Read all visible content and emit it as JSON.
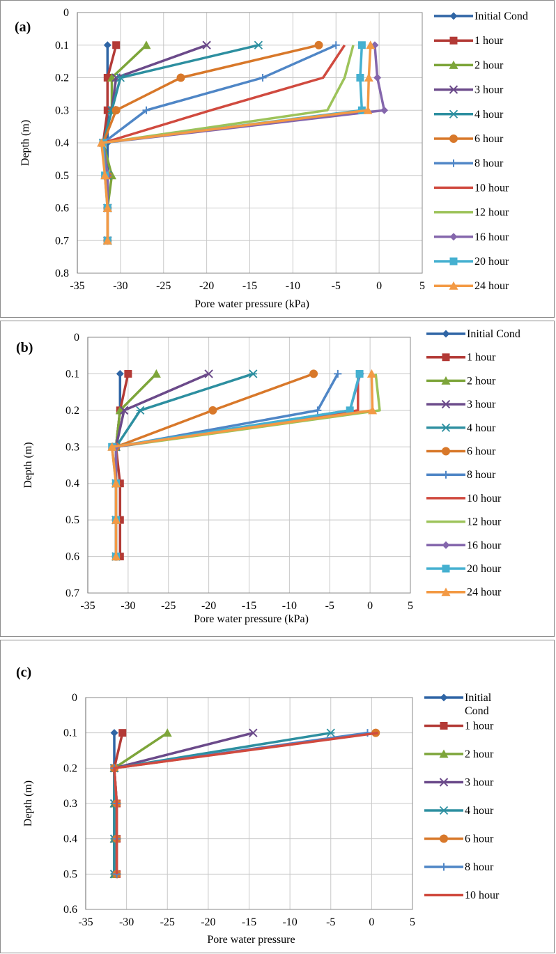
{
  "series_styles": [
    {
      "color": "#2f65a5",
      "marker": "diamond"
    },
    {
      "color": "#b33a36",
      "marker": "square"
    },
    {
      "color": "#7da53a",
      "marker": "triangle"
    },
    {
      "color": "#6b4a8a",
      "marker": "x"
    },
    {
      "color": "#2d8fa0",
      "marker": "star"
    },
    {
      "color": "#d8782a",
      "marker": "circle"
    },
    {
      "color": "#4f86c6",
      "marker": "plus"
    },
    {
      "color": "#d04a3f",
      "marker": "none"
    },
    {
      "color": "#9dc35a",
      "marker": "none"
    },
    {
      "color": "#8466ac",
      "marker": "diamond"
    },
    {
      "color": "#45b0d0",
      "marker": "square"
    },
    {
      "color": "#f39a45",
      "marker": "triangle"
    }
  ],
  "chart_data": [
    {
      "type": "line",
      "panel_label": "(a)",
      "xlabel": "Pore water pressure (kPa)",
      "ylabel": "Depth (m)",
      "xlim": [
        -35,
        5
      ],
      "xticks": [
        -35,
        -30,
        -25,
        -20,
        -15,
        -10,
        -5,
        0,
        5
      ],
      "ylim": [
        0,
        0.8
      ],
      "yticks": [
        "0",
        "0.1",
        "0.2",
        "0.3",
        "0.4",
        "0.5",
        "0.6",
        "0.7",
        "0.8"
      ],
      "y_inverted": true,
      "grid": "both",
      "legend_position": "right",
      "series": [
        {
          "name": "Initial Cond",
          "points": [
            [
              -31.5,
              0.1
            ],
            [
              -31.5,
              0.2
            ],
            [
              -31.5,
              0.3
            ],
            [
              -31.5,
              0.4
            ],
            [
              -31.5,
              0.5
            ],
            [
              -31.5,
              0.6
            ],
            [
              -31.5,
              0.7
            ]
          ]
        },
        {
          "name": "1 hour",
          "points": [
            [
              -30.5,
              0.1
            ],
            [
              -31.5,
              0.2
            ],
            [
              -31.5,
              0.3
            ],
            [
              -32,
              0.4
            ],
            [
              -31.5,
              0.5
            ],
            [
              -31.5,
              0.6
            ],
            [
              -31.5,
              0.7
            ]
          ]
        },
        {
          "name": "2 hour",
          "points": [
            [
              -27,
              0.1
            ],
            [
              -31,
              0.2
            ],
            [
              -31,
              0.3
            ],
            [
              -32,
              0.4
            ],
            [
              -31,
              0.5
            ],
            [
              -31.5,
              0.6
            ],
            [
              -31.5,
              0.7
            ]
          ]
        },
        {
          "name": "3 hour",
          "points": [
            [
              -20,
              0.1
            ],
            [
              -30.5,
              0.2
            ],
            [
              -31,
              0.3
            ],
            [
              -32,
              0.4
            ],
            [
              -31.5,
              0.5
            ],
            [
              -31.5,
              0.6
            ],
            [
              -31.5,
              0.7
            ]
          ]
        },
        {
          "name": "4 hour",
          "points": [
            [
              -14,
              0.1
            ],
            [
              -30,
              0.2
            ],
            [
              -31,
              0.3
            ],
            [
              -32,
              0.4
            ],
            [
              -31.5,
              0.5
            ],
            [
              -31.5,
              0.6
            ],
            [
              -31.5,
              0.7
            ]
          ]
        },
        {
          "name": "6 hour",
          "points": [
            [
              -7,
              0.1
            ],
            [
              -23,
              0.2
            ],
            [
              -30.5,
              0.3
            ],
            [
              -32,
              0.4
            ],
            [
              -31.5,
              0.5
            ],
            [
              -31.5,
              0.6
            ],
            [
              -31.5,
              0.7
            ]
          ]
        },
        {
          "name": "8 hour",
          "points": [
            [
              -5,
              0.1
            ],
            [
              -13.5,
              0.2
            ],
            [
              -27,
              0.3
            ],
            [
              -32,
              0.4
            ],
            [
              -31.5,
              0.5
            ],
            [
              -31.5,
              0.6
            ],
            [
              -31.5,
              0.7
            ]
          ]
        },
        {
          "name": "10 hour",
          "points": [
            [
              -4,
              0.1
            ],
            [
              -6.5,
              0.2
            ],
            [
              -19.5,
              0.3
            ],
            [
              -32,
              0.4
            ],
            [
              -31.5,
              0.5
            ],
            [
              -31.5,
              0.6
            ],
            [
              -31.5,
              0.7
            ]
          ]
        },
        {
          "name": "12 hour",
          "points": [
            [
              -3,
              0.1
            ],
            [
              -4,
              0.2
            ],
            [
              -6,
              0.3
            ],
            [
              -32,
              0.4
            ],
            [
              -31.5,
              0.5
            ],
            [
              -31.5,
              0.6
            ],
            [
              -31.5,
              0.7
            ]
          ]
        },
        {
          "name": "16 hour",
          "points": [
            [
              -0.5,
              0.1
            ],
            [
              -0.2,
              0.2
            ],
            [
              0.6,
              0.3
            ],
            [
              -32,
              0.4
            ],
            [
              -31.5,
              0.5
            ],
            [
              -31.5,
              0.6
            ],
            [
              -31.5,
              0.7
            ]
          ]
        },
        {
          "name": "20 hour",
          "points": [
            [
              -2,
              0.1
            ],
            [
              -2.2,
              0.2
            ],
            [
              -2,
              0.3
            ],
            [
              -32,
              0.4
            ],
            [
              -31.8,
              0.5
            ],
            [
              -31.5,
              0.6
            ],
            [
              -31.5,
              0.7
            ]
          ]
        },
        {
          "name": "24 hour",
          "points": [
            [
              -1,
              0.1
            ],
            [
              -1.2,
              0.2
            ],
            [
              -1.3,
              0.3
            ],
            [
              -32.2,
              0.4
            ],
            [
              -31.8,
              0.5
            ],
            [
              -31.5,
              0.6
            ],
            [
              -31.5,
              0.7
            ]
          ]
        }
      ]
    },
    {
      "type": "line",
      "panel_label": "(b)",
      "xlabel": "Pore water pressure (kPa)",
      "ylabel": "Depth (m)",
      "xlim": [
        -35,
        5
      ],
      "xticks": [
        -35,
        -30,
        -25,
        -20,
        -15,
        -10,
        -5,
        0,
        5
      ],
      "ylim": [
        0,
        0.7
      ],
      "yticks": [
        "0",
        "0.1",
        "0.2",
        "0.3",
        "0.4",
        "0.5",
        "0.6",
        "0.7"
      ],
      "y_inverted": true,
      "grid": "both",
      "legend_position": "right",
      "series": [
        {
          "name": "Initial Cond",
          "points": [
            [
              -31,
              0.1
            ],
            [
              -31,
              0.2
            ],
            [
              -31.5,
              0.3
            ],
            [
              -31.5,
              0.4
            ],
            [
              -31.5,
              0.5
            ],
            [
              -31.5,
              0.6
            ]
          ]
        },
        {
          "name": "1 hour",
          "points": [
            [
              -30,
              0.1
            ],
            [
              -31,
              0.2
            ],
            [
              -31.5,
              0.3
            ],
            [
              -31,
              0.4
            ],
            [
              -31,
              0.5
            ],
            [
              -31,
              0.6
            ]
          ]
        },
        {
          "name": "2 hour",
          "points": [
            [
              -26.5,
              0.1
            ],
            [
              -31,
              0.2
            ],
            [
              -31.5,
              0.3
            ],
            [
              -31.5,
              0.4
            ],
            [
              -31.5,
              0.5
            ],
            [
              -31.5,
              0.6
            ]
          ]
        },
        {
          "name": "3 hour",
          "points": [
            [
              -20,
              0.1
            ],
            [
              -30.5,
              0.2
            ],
            [
              -31.5,
              0.3
            ],
            [
              -31.5,
              0.4
            ],
            [
              -31.5,
              0.5
            ],
            [
              -31.5,
              0.6
            ]
          ]
        },
        {
          "name": "4 hour",
          "points": [
            [
              -14.5,
              0.1
            ],
            [
              -28.5,
              0.2
            ],
            [
              -31.5,
              0.3
            ],
            [
              -31.5,
              0.4
            ],
            [
              -31.5,
              0.5
            ],
            [
              -31.5,
              0.6
            ]
          ]
        },
        {
          "name": "6 hour",
          "points": [
            [
              -7,
              0.1
            ],
            [
              -19.5,
              0.2
            ],
            [
              -31.5,
              0.3
            ],
            [
              -31.5,
              0.4
            ],
            [
              -31.5,
              0.5
            ],
            [
              -31.5,
              0.6
            ]
          ]
        },
        {
          "name": "8 hour",
          "points": [
            [
              -4,
              0.1
            ],
            [
              -6.5,
              0.2
            ],
            [
              -31.5,
              0.3
            ],
            [
              -31.5,
              0.4
            ],
            [
              -31.5,
              0.5
            ],
            [
              -31.5,
              0.6
            ]
          ]
        },
        {
          "name": "10 hour",
          "points": [
            [
              -1.5,
              0.1
            ],
            [
              -1.5,
              0.2
            ],
            [
              -31.5,
              0.3
            ],
            [
              -31.5,
              0.4
            ],
            [
              -31.5,
              0.5
            ],
            [
              -31.5,
              0.6
            ]
          ]
        },
        {
          "name": "12 hour",
          "points": [
            [
              0.7,
              0.1
            ],
            [
              1.2,
              0.2
            ],
            [
              -31.5,
              0.3
            ],
            [
              -31.5,
              0.4
            ],
            [
              -31.5,
              0.5
            ],
            [
              -31.5,
              0.6
            ]
          ]
        },
        {
          "name": "16 hour",
          "points": [
            [
              -1.2,
              0.1
            ],
            [
              -2.5,
              0.2
            ],
            [
              -31.5,
              0.3
            ],
            [
              -31.5,
              0.4
            ],
            [
              -31.5,
              0.5
            ],
            [
              -31.5,
              0.6
            ]
          ]
        },
        {
          "name": "20 hour",
          "points": [
            [
              -1.3,
              0.1
            ],
            [
              -2.5,
              0.2
            ],
            [
              -32,
              0.3
            ],
            [
              -31.5,
              0.4
            ],
            [
              -31.5,
              0.5
            ],
            [
              -31.5,
              0.6
            ]
          ]
        },
        {
          "name": "24 hour",
          "points": [
            [
              0.2,
              0.1
            ],
            [
              0.3,
              0.2
            ],
            [
              -32,
              0.3
            ],
            [
              -31.5,
              0.4
            ],
            [
              -31.5,
              0.5
            ],
            [
              -31.5,
              0.6
            ]
          ]
        }
      ]
    },
    {
      "type": "line",
      "panel_label": "(c)",
      "xlabel": "Pore water pressure",
      "ylabel": "Depth (m)",
      "xlim": [
        -35,
        5
      ],
      "xticks": [
        -35,
        -30,
        -25,
        -20,
        -15,
        -10,
        -5,
        0,
        5
      ],
      "ylim": [
        0,
        0.6
      ],
      "yticks": [
        "0",
        "0.1",
        "0.2",
        "0.3",
        "0.4",
        "0.5",
        "0.6"
      ],
      "y_inverted": true,
      "grid": "both",
      "legend_position": "right",
      "series": [
        {
          "name": "Initial Cond",
          "points": [
            [
              -31.5,
              0.1
            ],
            [
              -31.5,
              0.2
            ],
            [
              -31.5,
              0.3
            ],
            [
              -31.5,
              0.4
            ],
            [
              -31.5,
              0.5
            ]
          ]
        },
        {
          "name": "1 hour",
          "points": [
            [
              -30.5,
              0.1
            ],
            [
              -31.5,
              0.2
            ],
            [
              -31.2,
              0.3
            ],
            [
              -31.2,
              0.4
            ],
            [
              -31.2,
              0.5
            ]
          ]
        },
        {
          "name": "2 hour",
          "points": [
            [
              -25,
              0.1
            ],
            [
              -31.5,
              0.2
            ],
            [
              -31.5,
              0.3
            ],
            [
              -31.5,
              0.4
            ],
            [
              -31.5,
              0.5
            ]
          ]
        },
        {
          "name": "3 hour",
          "points": [
            [
              -14.5,
              0.1
            ],
            [
              -31.5,
              0.2
            ],
            [
              -31.5,
              0.3
            ],
            [
              -31.5,
              0.4
            ],
            [
              -31.5,
              0.5
            ]
          ]
        },
        {
          "name": "4 hour",
          "points": [
            [
              -5,
              0.1
            ],
            [
              -31.5,
              0.2
            ],
            [
              -31.5,
              0.3
            ],
            [
              -31.5,
              0.4
            ],
            [
              -31.5,
              0.5
            ]
          ]
        },
        {
          "name": "6 hour",
          "points": [
            [
              0.5,
              0.1
            ],
            [
              -31.5,
              0.2
            ],
            [
              -31.2,
              0.3
            ],
            [
              -31.2,
              0.4
            ],
            [
              -31.2,
              0.5
            ]
          ]
        },
        {
          "name": "8 hour",
          "points": [
            [
              -0.5,
              0.1
            ],
            [
              -31.5,
              0.2
            ],
            [
              -31.2,
              0.3
            ],
            [
              -31.2,
              0.4
            ],
            [
              -31.2,
              0.5
            ]
          ]
        },
        {
          "name": "10 hour",
          "points": [
            [
              0.8,
              0.1
            ],
            [
              -31.5,
              0.2
            ],
            [
              -31.2,
              0.3
            ],
            [
              -31.2,
              0.4
            ],
            [
              -31.2,
              0.5
            ]
          ]
        }
      ]
    }
  ]
}
